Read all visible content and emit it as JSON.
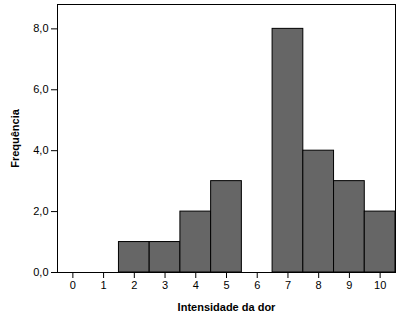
{
  "chart_data": {
    "type": "histogram",
    "x_label": "Intensidade da dor",
    "y_label": "Frequência",
    "bins": [
      1.5,
      2.5,
      3.5,
      4.5,
      5.5,
      6.5,
      7.5,
      8.5,
      9.5,
      10.5
    ],
    "values": [
      1,
      1,
      2,
      3,
      0,
      8,
      4,
      3,
      2
    ],
    "color": "#666666",
    "xlim": [
      -0.5,
      10.5
    ],
    "xticks": [
      0,
      1,
      2,
      3,
      4,
      5,
      6,
      7,
      8,
      9,
      10
    ],
    "ylim": [
      0,
      8.8
    ],
    "yticks": [
      {
        "value": 0,
        "label": "0,0"
      },
      {
        "value": 2,
        "label": "2,0"
      },
      {
        "value": 4,
        "label": "4,0"
      },
      {
        "value": 6,
        "label": "6,0"
      },
      {
        "value": 8,
        "label": "8,0"
      }
    ],
    "grid": false
  }
}
